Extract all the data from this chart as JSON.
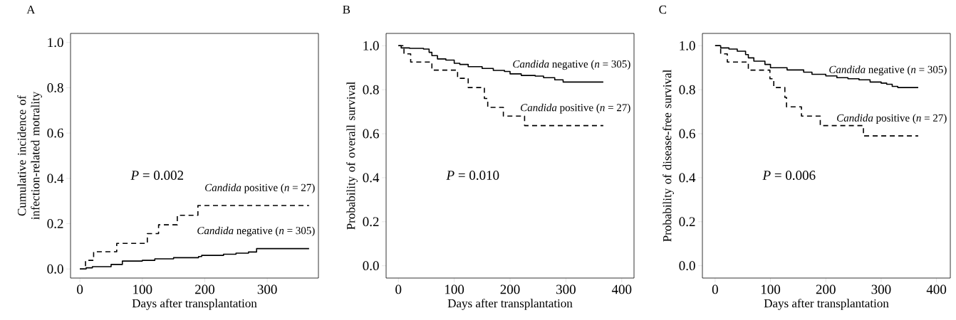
{
  "chart_data": [
    {
      "type": "step",
      "title": "A",
      "xlabel": "Days after transplantation",
      "ylabel": "Cumulative incidence of infection-related motrality",
      "xlim": [
        -15,
        382
      ],
      "ylim": [
        -0.04,
        1.04
      ],
      "xticks": [
        0,
        100,
        200,
        300
      ],
      "yticks": [
        {
          "value": 0,
          "label": "0.0"
        },
        {
          "value": 0.2,
          "label": "0.2"
        },
        {
          "value": 0.4,
          "label": "0.4"
        },
        {
          "value": 0.6,
          "label": "0.6"
        },
        {
          "value": 0.8,
          "label": "0.8"
        },
        {
          "value": 1,
          "label": "1.0"
        }
      ],
      "annotations": [
        "*P* = 0.002"
      ],
      "series": [
        {
          "name": "*Candida* positive (*n* = 27)",
          "color": "#000000",
          "line_style": "dashed",
          "x": [
            0,
            9,
            22,
            59,
            108,
            126,
            156,
            189,
            367
          ],
          "values": [
            0,
            0.038,
            0.076,
            0.113,
            0.156,
            0.195,
            0.237,
            0.28,
            0.28
          ]
        },
        {
          "name": "*Candida* negative (*n* = 305)",
          "color": "#000000",
          "line_style": "solid",
          "x": [
            0,
            10,
            20,
            50,
            68,
            100,
            120,
            150,
            190,
            195,
            230,
            250,
            270,
            283,
            367
          ],
          "values": [
            0,
            0.005,
            0.01,
            0.02,
            0.035,
            0.038,
            0.045,
            0.05,
            0.055,
            0.06,
            0.065,
            0.07,
            0.075,
            0.09,
            0.09
          ]
        }
      ]
    },
    {
      "type": "step",
      "title": "B",
      "xlabel": "Days after transplantation",
      "ylabel": "Probability of overall survival",
      "xlim": [
        -22,
        422
      ],
      "ylim": [
        -0.056,
        1.056
      ],
      "xticks": [
        0,
        100,
        200,
        300,
        400
      ],
      "yticks": [
        {
          "value": 0,
          "label": "0.0"
        },
        {
          "value": 0.2,
          "label": "0.2"
        },
        {
          "value": 0.4,
          "label": "0.4"
        },
        {
          "value": 0.6,
          "label": "0.6"
        },
        {
          "value": 0.8,
          "label": "0.8"
        },
        {
          "value": 1,
          "label": "1.0"
        }
      ],
      "annotations": [
        "*P* = 0.010"
      ],
      "series": [
        {
          "name": "*Candida* negative (*n* = 305)",
          "color": "#000000",
          "line_style": "solid",
          "x": [
            0,
            5,
            20,
            45,
            55,
            60,
            70,
            85,
            100,
            110,
            125,
            150,
            170,
            190,
            200,
            220,
            245,
            260,
            280,
            295,
            367
          ],
          "values": [
            1.0,
            0.99,
            0.988,
            0.985,
            0.97,
            0.955,
            0.94,
            0.935,
            0.92,
            0.915,
            0.905,
            0.897,
            0.888,
            0.883,
            0.872,
            0.865,
            0.862,
            0.855,
            0.845,
            0.835,
            0.835
          ]
        },
        {
          "name": "*Candida* positive (*n* = 27)",
          "color": "#000000",
          "line_style": "dashed",
          "x": [
            0,
            10,
            22,
            60,
            106,
            125,
            154,
            160,
            188,
            226,
            367
          ],
          "values": [
            1.0,
            0.963,
            0.926,
            0.889,
            0.852,
            0.81,
            0.76,
            0.72,
            0.68,
            0.637,
            0.637
          ]
        }
      ]
    },
    {
      "type": "step",
      "title": "C",
      "xlabel": "Days after transplantation",
      "ylabel": "Probability of disease-free survival",
      "xlim": [
        -23,
        425
      ],
      "ylim": [
        -0.056,
        1.056
      ],
      "xticks": [
        0,
        100,
        200,
        300,
        400
      ],
      "yticks": [
        {
          "value": 0,
          "label": "0.0"
        },
        {
          "value": 0.2,
          "label": "0.2"
        },
        {
          "value": 0.4,
          "label": "0.4"
        },
        {
          "value": 0.6,
          "label": "0.6"
        },
        {
          "value": 0.8,
          "label": "0.8"
        },
        {
          "value": 1,
          "label": "1.0"
        }
      ],
      "annotations": [
        "*P* = 0.006"
      ],
      "series": [
        {
          "name": "*Candida* negative (*n* = 305)",
          "color": "#000000",
          "line_style": "solid",
          "x": [
            0,
            10,
            25,
            40,
            55,
            60,
            70,
            90,
            100,
            130,
            160,
            175,
            200,
            220,
            240,
            260,
            280,
            300,
            310,
            320,
            330,
            367
          ],
          "values": [
            1.0,
            0.99,
            0.985,
            0.975,
            0.96,
            0.945,
            0.93,
            0.915,
            0.9,
            0.89,
            0.88,
            0.87,
            0.863,
            0.855,
            0.85,
            0.845,
            0.835,
            0.83,
            0.825,
            0.815,
            0.81,
            0.81
          ]
        },
        {
          "name": "*Candida* positive (*n* = 27)",
          "color": "#000000",
          "line_style": "dashed",
          "x": [
            0,
            10,
            22,
            60,
            99,
            106,
            126,
            129,
            156,
            190,
            268,
            367
          ],
          "values": [
            1.0,
            0.963,
            0.926,
            0.889,
            0.85,
            0.81,
            0.765,
            0.722,
            0.68,
            0.637,
            0.59,
            0.59
          ]
        }
      ]
    }
  ]
}
